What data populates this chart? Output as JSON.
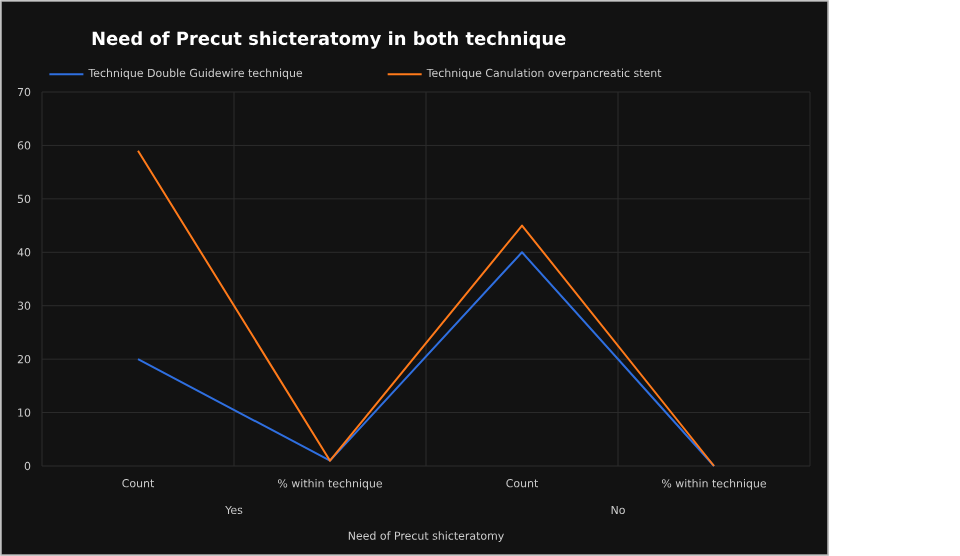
{
  "chart_data": {
    "type": "line",
    "title": "Need of Precut shicteratomy in both technique",
    "xlabel": "Need of Precut shicteratomy",
    "categories": [
      "Count",
      "% within technique",
      "Count",
      "% within technique"
    ],
    "series": [
      {
        "name": "Technique Double Guidewire technique",
        "color": "#2f6fe0",
        "values": [
          20,
          1,
          40,
          0
        ]
      },
      {
        "name": "Technique Canulation overpancreatic stent",
        "color": "#ff7a1a",
        "values": [
          59,
          1,
          45,
          0
        ]
      }
    ],
    "annotations": [
      "Yes",
      "No"
    ],
    "ylim": [
      0,
      70
    ],
    "yticks": [
      0,
      10,
      20,
      30,
      40,
      50,
      60,
      70
    ],
    "grid": true,
    "legend": "top",
    "marker": "none",
    "line_style": "solid"
  }
}
